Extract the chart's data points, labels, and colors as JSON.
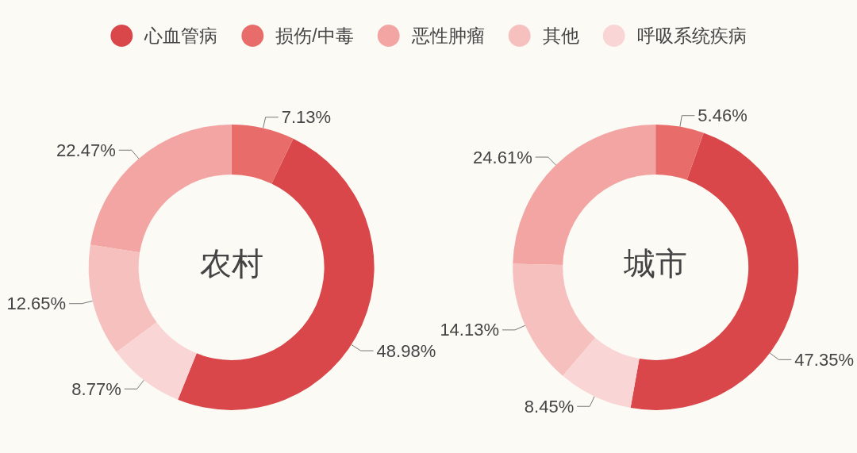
{
  "chart_data": {
    "type": "donut",
    "categories": [
      "心血管病",
      "损伤/中毒",
      "恶性肿瘤",
      "其他",
      "呼吸系统疾病"
    ],
    "colors": [
      "#d9474a",
      "#e86d6a",
      "#f2a5a2",
      "#f6c0be",
      "#f9d6d5"
    ],
    "legend": "top",
    "series": [
      {
        "name": "农村",
        "values": [
          48.98,
          7.13,
          22.47,
          12.65,
          8.77
        ],
        "value_labels": [
          "48.98%",
          "7.13%",
          "22.47%",
          "12.65%",
          "8.77%"
        ]
      },
      {
        "name": "城市",
        "values": [
          47.35,
          5.46,
          24.61,
          14.13,
          8.45
        ],
        "value_labels": [
          "47.35%",
          "5.46%",
          "24.61%",
          "14.13%",
          "8.45%"
        ]
      }
    ]
  }
}
